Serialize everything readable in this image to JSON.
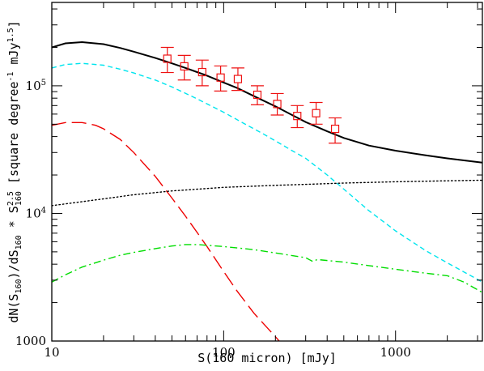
{
  "chart_data": {
    "type": "line",
    "title": "",
    "xlabel": "S(160 micron) [mJy]",
    "ylabel": {
      "p1": "dN(S",
      "s1": "160",
      "p2": ")/dS",
      "s2": "160",
      "p3": " * S",
      "sup": "2.5",
      "sub": "160",
      "p4": " [square degree",
      "exp1": "-1",
      "p5": " mJy",
      "exp2": "1.5",
      "p6": "]"
    },
    "x_scale": "log",
    "y_scale": "log",
    "xlim": [
      10,
      3200
    ],
    "ylim": [
      1000,
      450000
    ],
    "x_ticks": [
      {
        "value": 10,
        "label": "10"
      },
      {
        "value": 100,
        "label": "100"
      },
      {
        "value": 1000,
        "label": "1000"
      }
    ],
    "y_ticks": [
      {
        "value": 1000,
        "label": "1000"
      },
      {
        "value": 10000,
        "label": "10",
        "exponent": "4"
      },
      {
        "value": 100000,
        "label": "10",
        "exponent": "5"
      }
    ],
    "grid": false,
    "legend": "none",
    "series": [
      {
        "style": "solid",
        "color": "#000000",
        "x": [
          10,
          12,
          15,
          20,
          25,
          30,
          40,
          50,
          60,
          70,
          80,
          100,
          120,
          150,
          200,
          250,
          300,
          400,
          500,
          700,
          1000,
          1500,
          2000,
          3200
        ],
        "y": [
          200000,
          215000,
          220000,
          212000,
          198000,
          185000,
          165000,
          150000,
          138000,
          128000,
          120000,
          106000,
          96000,
          83000,
          69000,
          59000,
          52000,
          44000,
          39000,
          34000,
          31000,
          28500,
          27000,
          25000
        ]
      },
      {
        "style": "dashed",
        "color": "#00e5ee",
        "x": [
          10,
          12,
          15,
          20,
          25,
          30,
          40,
          50,
          70,
          100,
          130,
          170,
          200,
          250,
          300,
          400,
          500,
          700,
          1000,
          1500,
          2000,
          3200
        ],
        "y": [
          138000,
          147000,
          150000,
          145000,
          135000,
          126000,
          111000,
          98000,
          79000,
          62000,
          51000,
          42000,
          37000,
          31000,
          27000,
          20000,
          15500,
          10500,
          7300,
          5100,
          4100,
          2900
        ]
      },
      {
        "style": "longdash",
        "color": "#ee0000",
        "x": [
          10,
          12,
          15,
          18,
          20,
          25,
          30,
          40,
          50,
          60,
          70,
          80,
          100,
          120,
          150,
          200,
          260
        ],
        "y": [
          49000,
          51500,
          51500,
          49000,
          46000,
          38000,
          30000,
          19500,
          13200,
          9500,
          7100,
          5500,
          3500,
          2450,
          1650,
          1080,
          720
        ]
      },
      {
        "style": "dotted",
        "color": "#000000",
        "x": [
          10,
          20,
          30,
          50,
          100,
          200,
          300,
          500,
          1000,
          2000,
          3200
        ],
        "y": [
          11500,
          13000,
          14000,
          15000,
          16000,
          16600,
          16900,
          17300,
          17700,
          18000,
          18200
        ]
      },
      {
        "style": "dashdot",
        "color": "#00dd00",
        "x": [
          10,
          12,
          15,
          20,
          25,
          30,
          40,
          50,
          60,
          70,
          100,
          150,
          200,
          300,
          330,
          350,
          500,
          700,
          1000,
          1500,
          2000,
          2500,
          3200
        ],
        "y": [
          2900,
          3300,
          3800,
          4300,
          4700,
          4950,
          5300,
          5550,
          5700,
          5700,
          5500,
          5200,
          4900,
          4500,
          4200,
          4350,
          4150,
          3900,
          3650,
          3400,
          3250,
          2900,
          2400
        ]
      }
    ],
    "points": {
      "marker": "open-square",
      "color": "#ee1111",
      "x": [
        47,
        59,
        75,
        96,
        121,
        157,
        205,
        268,
        345,
        445
      ],
      "y": [
        163000,
        142000,
        128000,
        116000,
        113000,
        85000,
        72000,
        58000,
        61000,
        46000
      ],
      "err_low": [
        127000,
        111000,
        100000,
        91000,
        92000,
        71000,
        59000,
        47000,
        50000,
        35500
      ],
      "err_high": [
        200000,
        173000,
        159000,
        143000,
        138000,
        100000,
        87000,
        70000,
        74000,
        56000
      ]
    }
  }
}
